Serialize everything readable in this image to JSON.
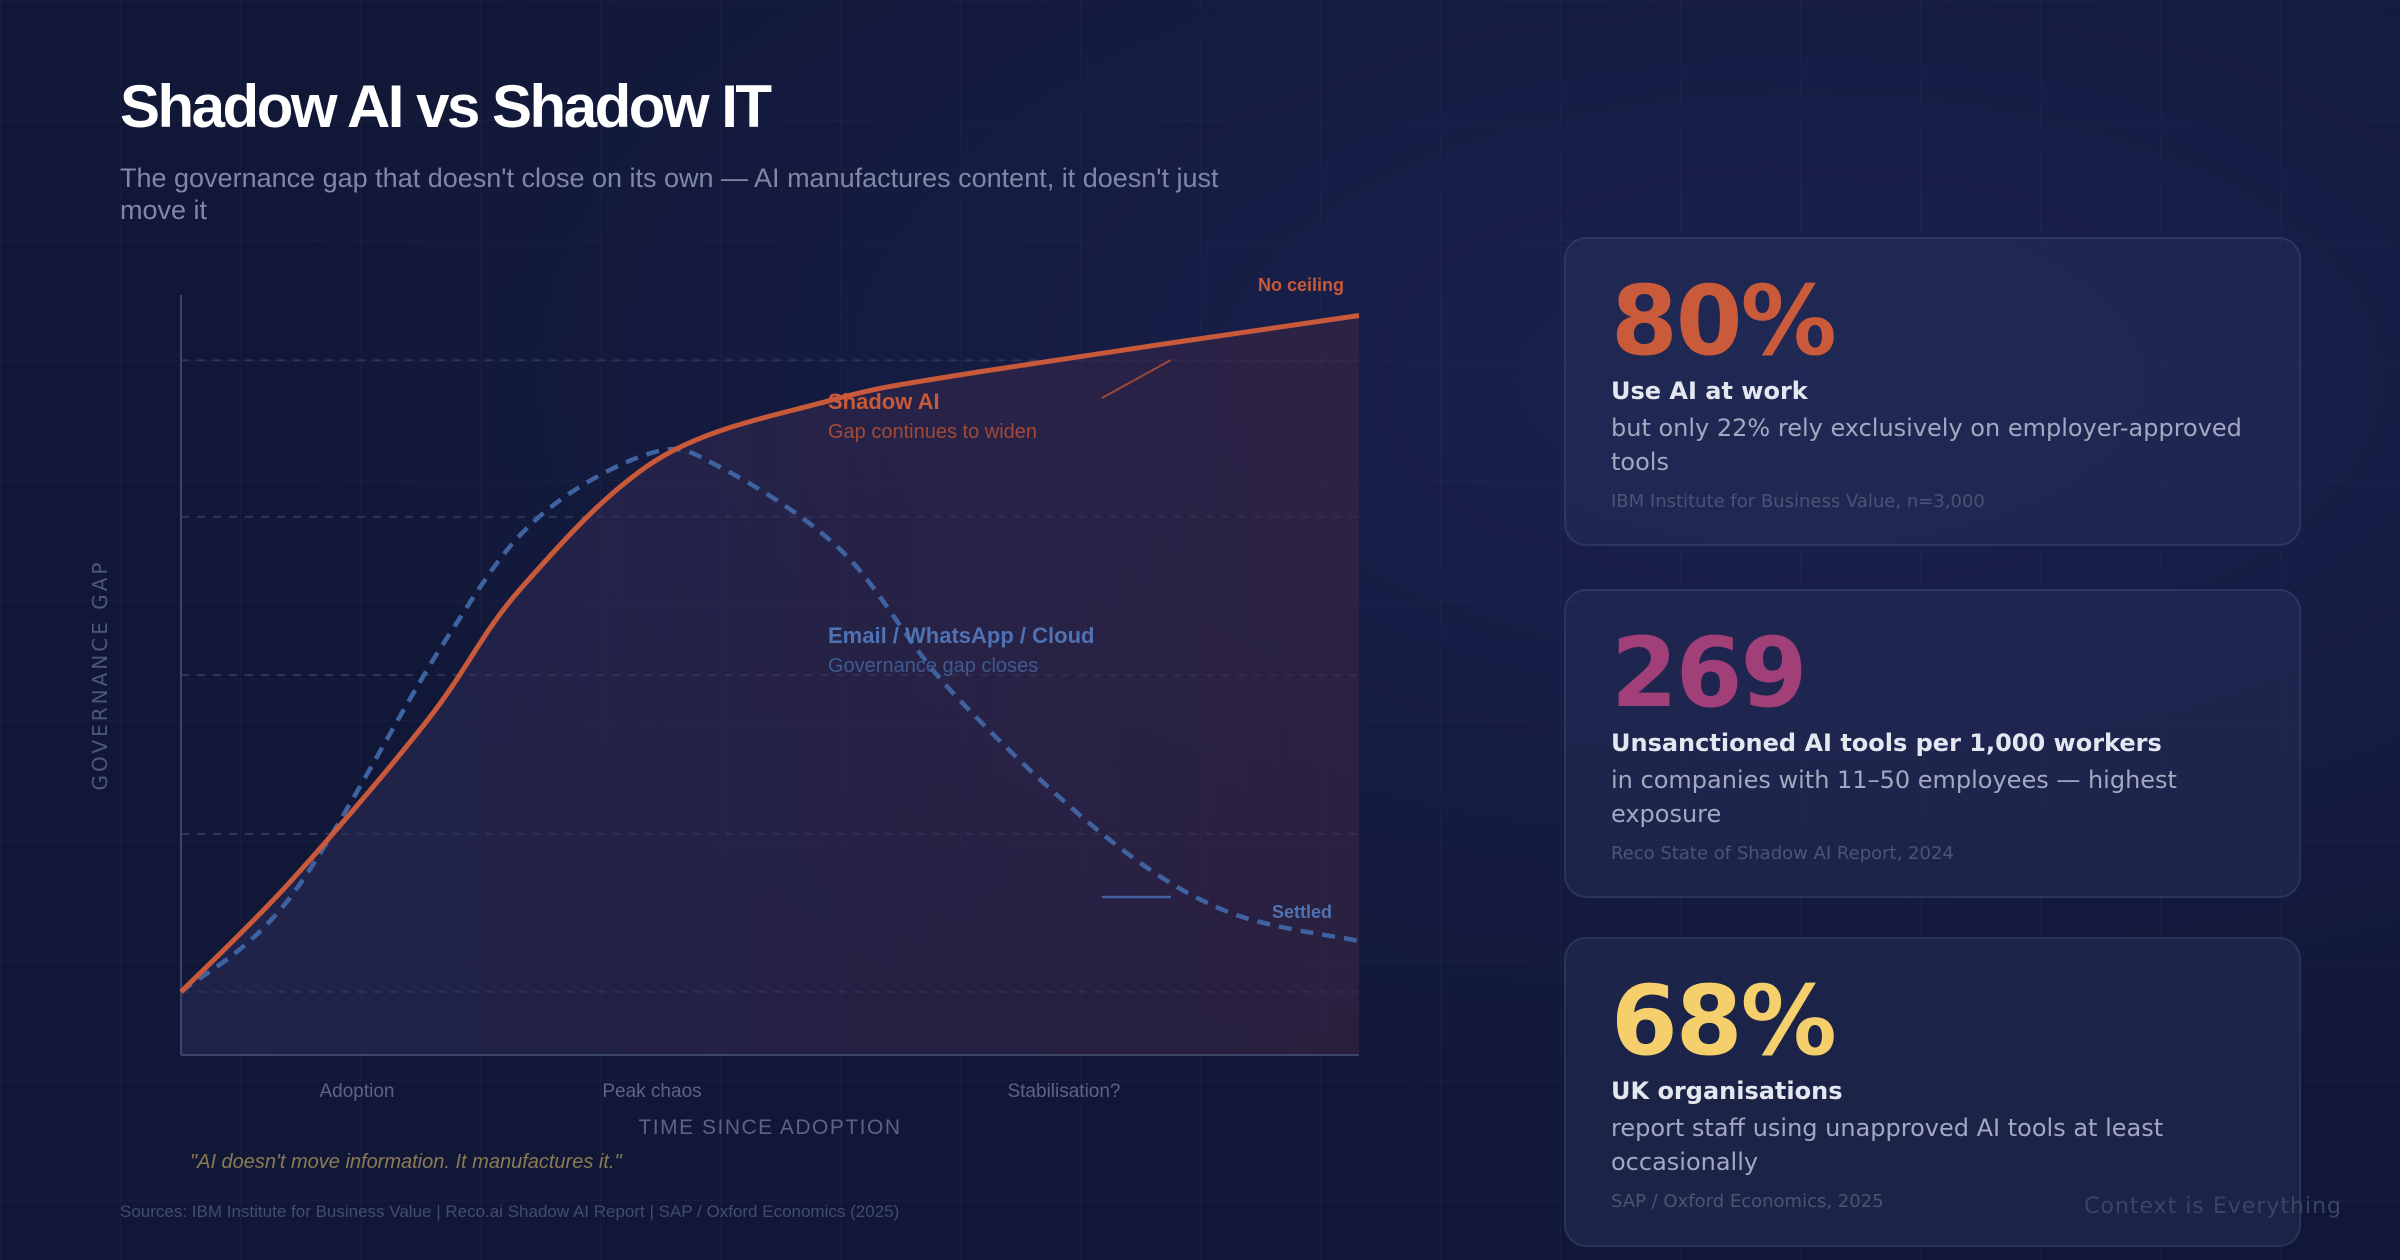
{
  "header": {
    "title": "Shadow AI vs Shadow IT",
    "subtitle": "The governance gap that doesn't close on its own — AI manufactures content, it doesn't just move it"
  },
  "chart_data": {
    "type": "line",
    "title": "",
    "xlabel": "TIME SINCE ADOPTION",
    "ylabel": "GOVERNANCE GAP",
    "xlim": [
      0,
      10
    ],
    "ylim": [
      0,
      100
    ],
    "x_tick_labels": [
      {
        "x": 1.5,
        "label": "Adoption"
      },
      {
        "x": 4.0,
        "label": "Peak chaos"
      },
      {
        "x": 7.5,
        "label": "Stabilisation?"
      }
    ],
    "grid": "horizontal dashed",
    "series": [
      {
        "name": "Shadow AI",
        "sublabel": "Gap continues to widen",
        "end_label": "No ceiling",
        "color": "#c8593a",
        "style": "solid",
        "x": [
          0,
          0.94,
          2.1,
          2.88,
          4.05,
          5.48,
          6.78,
          10
        ],
        "y": [
          8.3,
          23,
          44.2,
          61.3,
          78.4,
          86,
          89.9,
          97.3
        ]
      },
      {
        "name": "Email / WhatsApp / Cloud",
        "sublabel": "Governance gap closes",
        "end_label": "Settled",
        "color": "#3f62a0",
        "style": "dashed",
        "x": [
          0,
          0.94,
          2.23,
          3.01,
          3.99,
          4.57,
          5.61,
          6.52,
          7.82,
          8.86,
          10
        ],
        "y": [
          8.3,
          21,
          54.2,
          70.4,
          79.2,
          77.4,
          66.3,
          48.2,
          29.1,
          19,
          15
        ]
      }
    ],
    "annotation": "\"AI doesn't move information. It manufactures it.\""
  },
  "sources": "Sources: IBM Institute for Business Value | Reco.ai Shadow AI Report | SAP / Oxford Economics (2025)",
  "cards": [
    {
      "value": "80%",
      "color": "#c95a3a",
      "heading": "Use AI at work",
      "description": "but only 22% rely exclusively on employer-approved tools",
      "source": "IBM Institute for Business Value, n=3,000"
    },
    {
      "value": "269",
      "color": "#a03f78",
      "heading": "Unsanctioned AI tools per 1,000 workers",
      "description": "in companies with 11–50 employees — highest exposure",
      "source": "Reco State of Shadow AI Report, 2024"
    },
    {
      "value": "68%",
      "color": "#f5cf6b",
      "heading": "UK organisations",
      "description": "report staff using unapproved AI tools at least occasionally",
      "source": "SAP / Oxford Economics, 2025"
    }
  ],
  "footer": "Context is Everything"
}
